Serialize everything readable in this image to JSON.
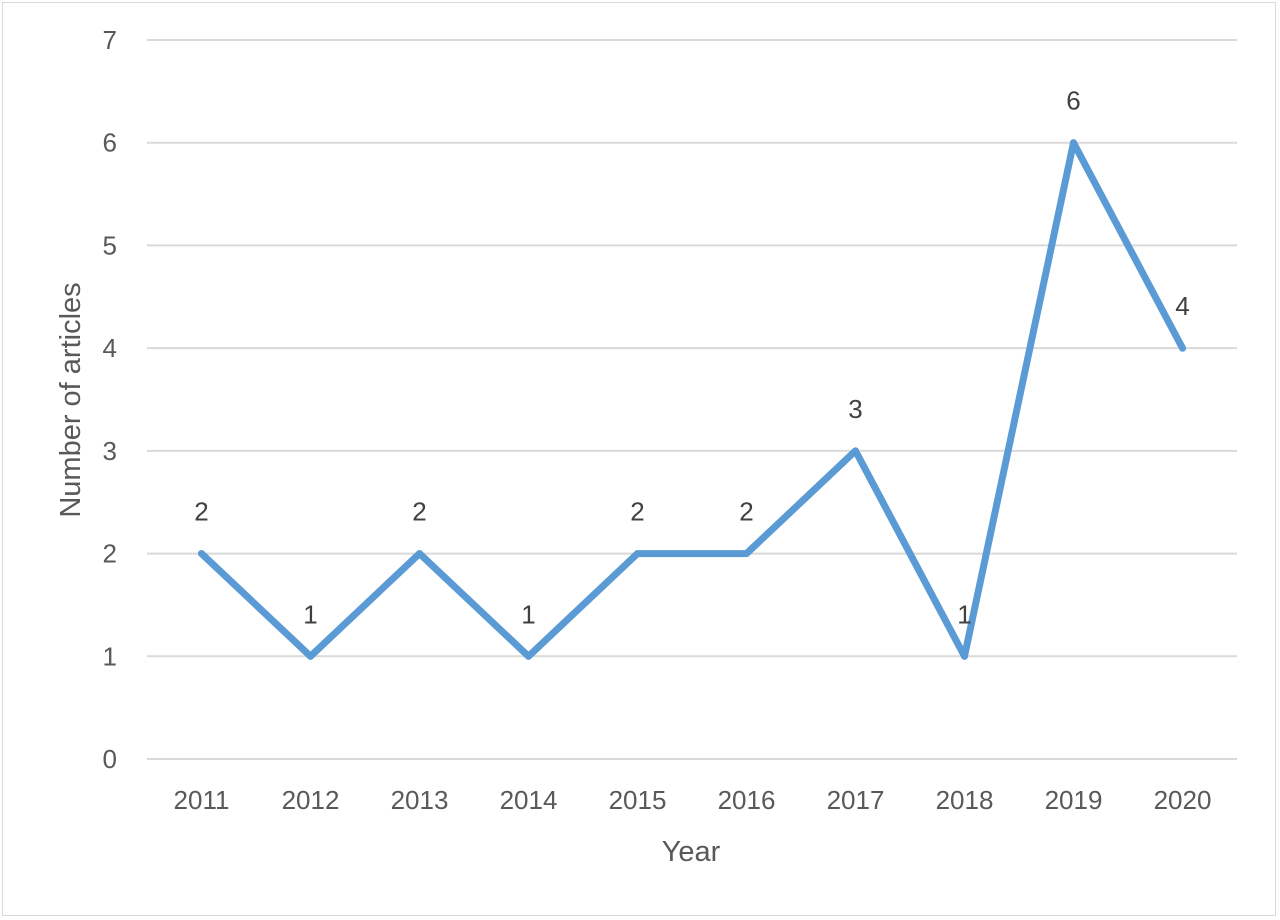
{
  "chart_data": {
    "type": "line",
    "title": "",
    "xlabel": "Year",
    "ylabel": "Number of articles",
    "categories": [
      "2011",
      "2012",
      "2013",
      "2014",
      "2015",
      "2016",
      "2017",
      "2018",
      "2019",
      "2020"
    ],
    "series": [
      {
        "values": [
          2,
          1,
          2,
          1,
          2,
          2,
          3,
          1,
          6,
          4
        ],
        "color": "#5b9bd5"
      }
    ],
    "data_labels": true,
    "ylim": [
      0,
      7
    ],
    "yticks": [
      0,
      1,
      2,
      3,
      4,
      5,
      6,
      7
    ],
    "grid": true,
    "legend": "none"
  }
}
